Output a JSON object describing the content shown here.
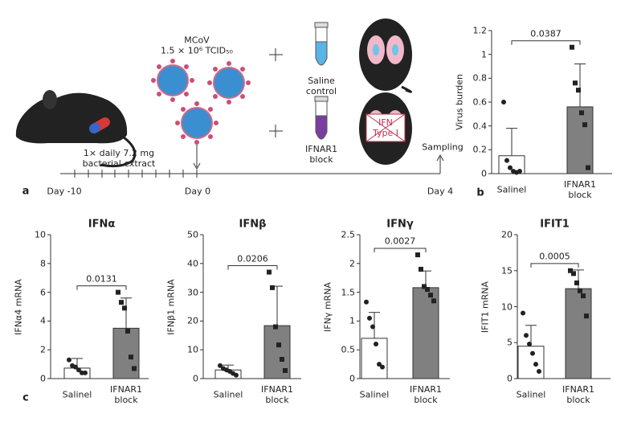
{
  "diagram": {
    "panel": "a",
    "virus_name": "MCoV",
    "virus_dose": "1.5 × 10⁶ TCID₅₀",
    "treatment": "1× daily 7.2 mg bacterial extract",
    "saline": "Saline control",
    "block": "IFNAR1 block",
    "lung_label": "IFN Type I",
    "sampling": "Sampling",
    "timeline": [
      "Day -10",
      "Day 0",
      "Day 4"
    ]
  },
  "chart_data": [
    {
      "type": "bar",
      "panel": "b",
      "ylabel": "Virus burden",
      "categories": [
        "Salinel",
        "IFNAR1 block"
      ],
      "values": [
        0.15,
        0.56
      ],
      "errors": [
        0.23,
        0.36
      ],
      "points": [
        [
          0.6,
          0.11,
          0.05,
          0.02,
          0.01,
          0.02
        ],
        [
          1.06,
          0.76,
          0.7,
          0.51,
          0.41,
          0.05
        ]
      ],
      "annotation": "0.0387",
      "ylim": [
        0,
        1.2
      ],
      "yticks": [
        0,
        0.2,
        0.4,
        0.6,
        0.8,
        1.0,
        1.2
      ],
      "colors": [
        "#ffffff",
        "#808080"
      ]
    },
    {
      "type": "bar",
      "panel": "c",
      "title": "IFNα",
      "ylabel": "IFNα4 mRNA",
      "categories": [
        "Salinel",
        "IFNAR1 block"
      ],
      "values": [
        0.73,
        3.5
      ],
      "errors": [
        0.67,
        2.1
      ],
      "points": [
        [
          1.3,
          0.9,
          0.8,
          0.6,
          0.4,
          0.4
        ],
        [
          6.0,
          5.3,
          4.9,
          3.3,
          1.5,
          0.7
        ]
      ],
      "annotation": "0.0131",
      "ylim": [
        0,
        10
      ],
      "yticks": [
        0,
        2,
        4,
        6,
        8,
        10
      ],
      "colors": [
        "#ffffff",
        "#808080"
      ]
    },
    {
      "type": "bar",
      "title": "IFNβ",
      "ylabel": "IFNβ1 mRNA",
      "categories": [
        "Salinel",
        "IFNAR1 block"
      ],
      "values": [
        3.0,
        18.4
      ],
      "errors": [
        1.7,
        13.7
      ],
      "points": [
        [
          4.5,
          3.5,
          3.0,
          2.5,
          1.8,
          1.2
        ],
        [
          37,
          31.6,
          18,
          11.7,
          6.7,
          2.8
        ]
      ],
      "annotation": "0.0206",
      "ylim": [
        0,
        50
      ],
      "yticks": [
        0,
        10,
        20,
        30,
        40,
        50
      ],
      "colors": [
        "#ffffff",
        "#808080"
      ]
    },
    {
      "type": "bar",
      "title": "IFNγ",
      "ylabel": "IFNγ mRNA",
      "categories": [
        "Salinel",
        "IFNAR1 block"
      ],
      "values": [
        0.7,
        1.58
      ],
      "errors": [
        0.45,
        0.29
      ],
      "points": [
        [
          1.33,
          1.05,
          0.9,
          0.6,
          0.25,
          0.2
        ],
        [
          2.15,
          1.9,
          1.6,
          1.55,
          1.45,
          1.35
        ]
      ],
      "annotation": "0.0027",
      "ylim": [
        0,
        2.5
      ],
      "yticks": [
        0,
        0.5,
        1.0,
        1.5,
        2.0,
        2.5
      ],
      "colors": [
        "#ffffff",
        "#808080"
      ]
    },
    {
      "type": "bar",
      "title": "IFIT1",
      "ylabel": "IFIT1 mRNA",
      "categories": [
        "Salinel",
        "IFNAR1 block"
      ],
      "values": [
        4.5,
        12.5
      ],
      "errors": [
        2.9,
        2.6
      ],
      "points": [
        [
          9.1,
          6.0,
          4.8,
          3.5,
          2.0,
          1.0
        ],
        [
          15.0,
          14.6,
          13.3,
          12.2,
          11.5,
          8.7
        ]
      ],
      "annotation": "0.0005",
      "ylim": [
        0,
        20
      ],
      "yticks": [
        0,
        5,
        10,
        15,
        20
      ],
      "colors": [
        "#ffffff",
        "#808080"
      ]
    }
  ]
}
